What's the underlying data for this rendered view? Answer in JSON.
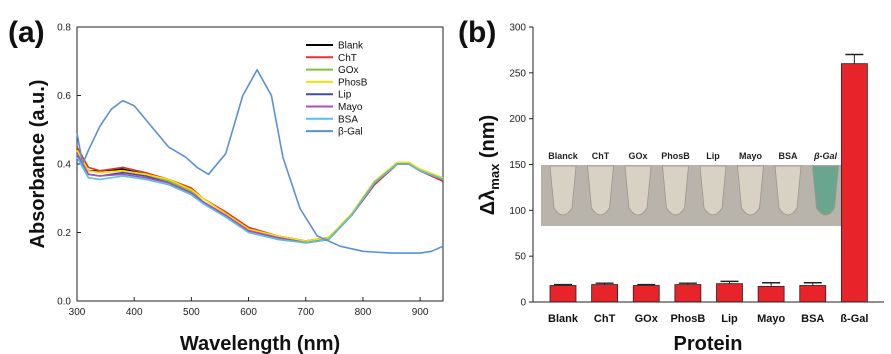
{
  "panels": {
    "a": "(a)",
    "b": "(b)"
  },
  "chart_data": [
    {
      "type": "line",
      "title": "",
      "xlabel": "Wavelength (nm)",
      "ylabel": "Absorbance (a.u.)",
      "xlim": [
        300,
        940
      ],
      "ylim": [
        0.0,
        0.8
      ],
      "xticks": [
        300,
        400,
        500,
        600,
        700,
        800,
        900
      ],
      "yticks": [
        0.0,
        0.2,
        0.4,
        0.6,
        0.8
      ],
      "ytick_labels": [
        "0.0",
        "0.2",
        "0.4",
        "0.6",
        "0.8"
      ],
      "grid": false,
      "legend_position": "top-right",
      "series": [
        {
          "name": "Blank",
          "color": "#000000",
          "x": [
            300,
            320,
            340,
            380,
            420,
            460,
            500,
            520,
            560,
            600,
            650,
            700,
            740,
            780,
            820,
            860,
            880,
            900,
            940
          ],
          "y": [
            0.44,
            0.38,
            0.38,
            0.385,
            0.37,
            0.35,
            0.32,
            0.29,
            0.25,
            0.21,
            0.19,
            0.175,
            0.185,
            0.25,
            0.34,
            0.4,
            0.4,
            0.38,
            0.35
          ]
        },
        {
          "name": "ChT",
          "color": "#e8302a",
          "x": [
            300,
            320,
            340,
            380,
            420,
            460,
            500,
            520,
            560,
            600,
            650,
            700,
            740,
            780,
            820,
            860,
            880,
            900,
            940
          ],
          "y": [
            0.45,
            0.39,
            0.38,
            0.39,
            0.375,
            0.355,
            0.33,
            0.3,
            0.26,
            0.215,
            0.19,
            0.175,
            0.185,
            0.25,
            0.34,
            0.4,
            0.4,
            0.38,
            0.35
          ]
        },
        {
          "name": "GOx",
          "color": "#7dc242",
          "x": [
            300,
            320,
            340,
            380,
            420,
            460,
            500,
            520,
            560,
            600,
            650,
            700,
            740,
            780,
            820,
            860,
            880,
            900,
            940
          ],
          "y": [
            0.44,
            0.38,
            0.375,
            0.38,
            0.37,
            0.35,
            0.32,
            0.29,
            0.25,
            0.205,
            0.185,
            0.17,
            0.18,
            0.25,
            0.345,
            0.405,
            0.4,
            0.38,
            0.355
          ]
        },
        {
          "name": "PhosB",
          "color": "#f5e000",
          "x": [
            300,
            320,
            340,
            380,
            420,
            460,
            500,
            520,
            560,
            600,
            650,
            700,
            740,
            780,
            820,
            860,
            880,
            900,
            940
          ],
          "y": [
            0.44,
            0.38,
            0.375,
            0.38,
            0.37,
            0.355,
            0.325,
            0.3,
            0.255,
            0.21,
            0.19,
            0.175,
            0.185,
            0.255,
            0.35,
            0.405,
            0.405,
            0.385,
            0.36
          ]
        },
        {
          "name": "Lip",
          "color": "#3e4fa0",
          "x": [
            300,
            320,
            340,
            380,
            420,
            460,
            500,
            520,
            560,
            600,
            650,
            700,
            740,
            780,
            820,
            860,
            880,
            900,
            940
          ],
          "y": [
            0.43,
            0.37,
            0.365,
            0.375,
            0.365,
            0.345,
            0.315,
            0.29,
            0.25,
            0.205,
            0.185,
            0.17,
            0.18,
            0.25,
            0.345,
            0.4,
            0.4,
            0.38,
            0.355
          ]
        },
        {
          "name": "Mayo",
          "color": "#b04cc2",
          "x": [
            300,
            320,
            340,
            380,
            420,
            460,
            500,
            520,
            560,
            600,
            650,
            700,
            740,
            780,
            820,
            860,
            880,
            900,
            940
          ],
          "y": [
            0.43,
            0.37,
            0.365,
            0.37,
            0.36,
            0.345,
            0.315,
            0.29,
            0.25,
            0.205,
            0.185,
            0.17,
            0.18,
            0.25,
            0.345,
            0.4,
            0.4,
            0.38,
            0.355
          ]
        },
        {
          "name": "BSA",
          "color": "#4fc3e8",
          "x": [
            300,
            320,
            340,
            380,
            420,
            460,
            500,
            520,
            560,
            600,
            650,
            700,
            740,
            780,
            820,
            860,
            880,
            900,
            940
          ],
          "y": [
            0.42,
            0.36,
            0.355,
            0.365,
            0.355,
            0.34,
            0.31,
            0.285,
            0.245,
            0.2,
            0.18,
            0.17,
            0.18,
            0.25,
            0.345,
            0.4,
            0.4,
            0.38,
            0.355
          ]
        },
        {
          "name": "β-Gal",
          "color": "#5b8fd6",
          "x": [
            300,
            310,
            320,
            340,
            360,
            380,
            400,
            430,
            460,
            490,
            510,
            530,
            560,
            590,
            615,
            640,
            660,
            690,
            720,
            760,
            800,
            850,
            900,
            920,
            940
          ],
          "y": [
            0.49,
            0.4,
            0.44,
            0.51,
            0.56,
            0.585,
            0.57,
            0.51,
            0.45,
            0.42,
            0.39,
            0.37,
            0.43,
            0.6,
            0.675,
            0.6,
            0.42,
            0.27,
            0.19,
            0.16,
            0.145,
            0.14,
            0.14,
            0.145,
            0.16
          ]
        }
      ]
    },
    {
      "type": "bar",
      "title": "",
      "xlabel": "Protein",
      "ylabel": "Δλ",
      "ylabel_sub": "max",
      "ylabel_unit": " (nm)",
      "ylim": [
        0,
        300
      ],
      "yticks": [
        0,
        50,
        100,
        150,
        200,
        250,
        300
      ],
      "grid": false,
      "bar_color": "#e8232a",
      "categories": [
        "Blank",
        "ChT",
        "GOx",
        "PhosB",
        "Lip",
        "Mayo",
        "BSA",
        "ß-Gal"
      ],
      "values": [
        18,
        19,
        18,
        19,
        20,
        17,
        18,
        260
      ],
      "errors": [
        1,
        1.5,
        1,
        1.5,
        2.5,
        4,
        3,
        10
      ],
      "inset_photo_labels": [
        "Blanck",
        "ChT",
        "GOx",
        "PhosB",
        "Lip",
        "Mayo",
        "BSA",
        "β-Gal"
      ]
    }
  ]
}
